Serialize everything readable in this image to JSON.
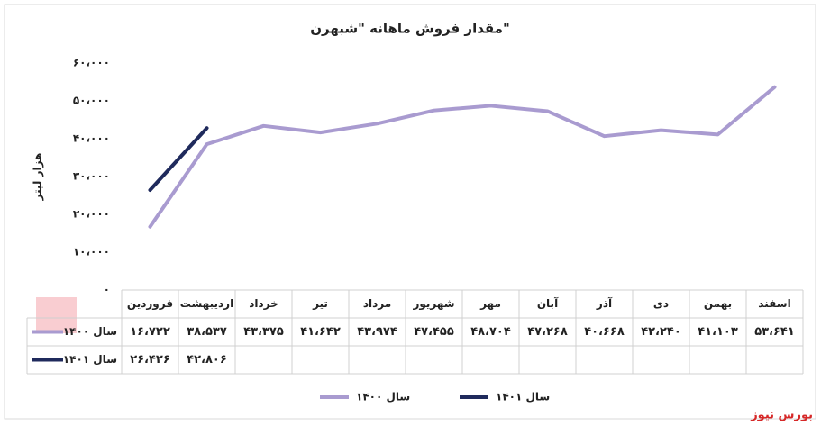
{
  "chart_data": {
    "type": "line",
    "title": "مقدار فروش ماهانه \"شبهرن\"",
    "y_label": "هزار لیتر",
    "categories": [
      "فروردین",
      "اردیبهشت",
      "خرداد",
      "تیر",
      "مرداد",
      "شهریور",
      "مهر",
      "آبان",
      "آذر",
      "دی",
      "بهمن",
      "اسفند"
    ],
    "series": [
      {
        "name": "سال ۱۴۰۰",
        "color": "#a99bd0",
        "values": [
          16722,
          38537,
          43375,
          41642,
          43974,
          47455,
          48704,
          47268,
          40668,
          42240,
          41103,
          53641
        ],
        "value_labels": [
          "۱۶،۷۲۲",
          "۳۸،۵۳۷",
          "۴۳،۳۷۵",
          "۴۱،۶۴۲",
          "۴۳،۹۷۴",
          "۴۷،۴۵۵",
          "۴۸،۷۰۴",
          "۴۷،۲۶۸",
          "۴۰،۶۶۸",
          "۴۲،۲۴۰",
          "۴۱،۱۰۳",
          "۵۳،۶۴۱"
        ]
      },
      {
        "name": "سال ۱۴۰۱",
        "color": "#1f2a5c",
        "values": [
          26426,
          42806,
          null,
          null,
          null,
          null,
          null,
          null,
          null,
          null,
          null,
          null
        ],
        "value_labels": [
          "۲۶،۴۲۶",
          "۴۲،۸۰۶",
          null,
          null,
          null,
          null,
          null,
          null,
          null,
          null,
          null,
          null
        ]
      }
    ],
    "ylim": [
      0,
      60000
    ],
    "yticks": [
      {
        "value": 0,
        "label": "۰"
      },
      {
        "value": 10000,
        "label": "۱۰،۰۰۰"
      },
      {
        "value": 20000,
        "label": "۲۰،۰۰۰"
      },
      {
        "value": 30000,
        "label": "۳۰،۰۰۰"
      },
      {
        "value": 40000,
        "label": "۴۰،۰۰۰"
      },
      {
        "value": 50000,
        "label": "۵۰،۰۰۰"
      },
      {
        "value": 60000,
        "label": "۶۰،۰۰۰"
      }
    ],
    "grid": false,
    "source": "بورس نیوز"
  }
}
